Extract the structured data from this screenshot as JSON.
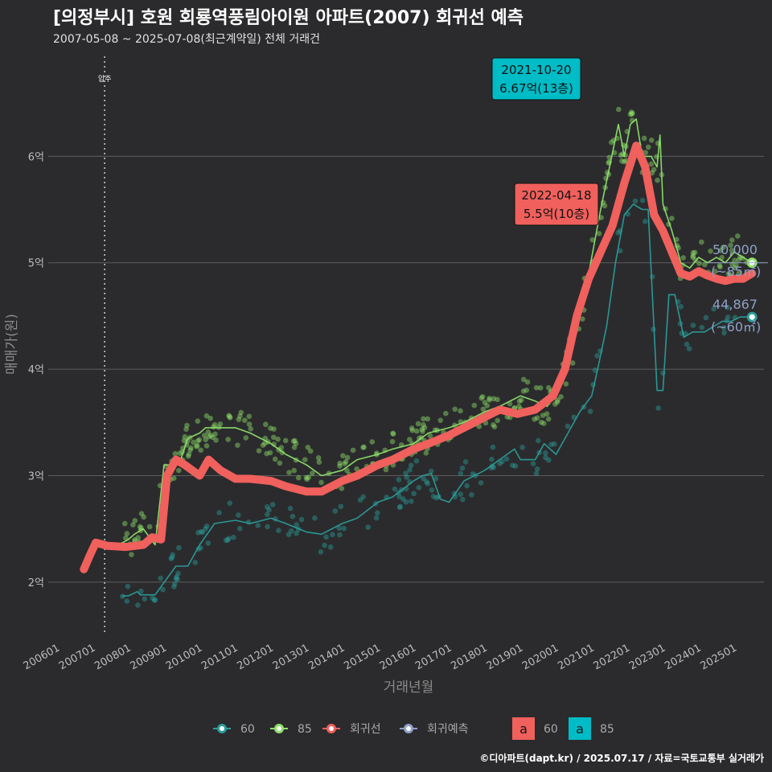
{
  "header": {
    "title": "[의정부시] 호원 회룡역풍림아이원 아파트(2007) 회귀선 예측",
    "subtitle": "2007-05-08 ~ 2025-07-08(최근계약일) 전체 거래건"
  },
  "credit": "©디아파트(dapt.kr) / 2025.07.17 / 자료=국토교통부 실거래가",
  "chart_data": {
    "type": "line",
    "xlabel": "거래년월",
    "ylabel": "매매가(원)",
    "ylim": [
      1.5,
      7.0
    ],
    "x_range": [
      "2005-10",
      "2025-11"
    ],
    "y_ticks": [
      {
        "value": 2,
        "label": "2억"
      },
      {
        "value": 3,
        "label": "3억"
      },
      {
        "value": 4,
        "label": "4억"
      },
      {
        "value": 5,
        "label": "5억"
      },
      {
        "value": 6,
        "label": "6억"
      }
    ],
    "x_ticks": [
      "200601",
      "200701",
      "200801",
      "200901",
      "201001",
      "201101",
      "201201",
      "201301",
      "201401",
      "201501",
      "201601",
      "201701",
      "201801",
      "201901",
      "202001",
      "202101",
      "202201",
      "202301",
      "202401",
      "202501"
    ],
    "vline": {
      "date": "2007-05",
      "label": "입주"
    },
    "grid": true,
    "series": [
      {
        "name": "60",
        "color": "#2a9d9a",
        "x": [
          "2007-11",
          "2008-01",
          "2008-04",
          "2008-05",
          "2008-10",
          "2009-05",
          "2009-09",
          "2010-01",
          "2010-06",
          "2011-01",
          "2011-06",
          "2012-01",
          "2012-06",
          "2013-01",
          "2013-06",
          "2014-01",
          "2014-06",
          "2015-01",
          "2015-06",
          "2016-01",
          "2016-04",
          "2016-07",
          "2016-10",
          "2017-01",
          "2017-06",
          "2018-01",
          "2018-06",
          "2018-11",
          "2019-01",
          "2019-06",
          "2019-09",
          "2020-01",
          "2020-06",
          "2020-09",
          "2021-01",
          "2021-03",
          "2021-06",
          "2021-09",
          "2021-12",
          "2022-03",
          "2022-06",
          "2022-08",
          "2022-11",
          "2023-01",
          "2023-03",
          "2023-05",
          "2023-08",
          "2023-11",
          "2024-01",
          "2024-03",
          "2024-06",
          "2024-09",
          "2024-12",
          "2025-03",
          "2025-07"
        ],
        "y": [
          1.87,
          1.87,
          1.91,
          1.88,
          1.88,
          2.15,
          2.15,
          2.35,
          2.55,
          2.58,
          2.55,
          2.6,
          2.55,
          2.47,
          2.45,
          2.55,
          2.6,
          2.75,
          2.8,
          2.95,
          3.0,
          3.02,
          2.78,
          2.75,
          2.95,
          3.05,
          3.15,
          3.25,
          3.15,
          3.15,
          3.3,
          3.2,
          3.45,
          3.6,
          3.75,
          4.0,
          4.4,
          5.0,
          5.45,
          5.55,
          5.5,
          5.5,
          3.8,
          3.8,
          4.7,
          4.7,
          4.3,
          4.35,
          4.35,
          4.35,
          4.4,
          4.45,
          4.45,
          4.49,
          4.49
        ]
      },
      {
        "name": "85",
        "color": "#8ee06a",
        "x": [
          "2007-11",
          "2008-01",
          "2008-03",
          "2008-06",
          "2008-10",
          "2009-01",
          "2009-03",
          "2009-06",
          "2009-09",
          "2010-01",
          "2010-03",
          "2010-06",
          "2011-01",
          "2011-06",
          "2012-01",
          "2012-06",
          "2013-01",
          "2013-06",
          "2014-01",
          "2014-06",
          "2015-01",
          "2015-06",
          "2016-01",
          "2016-06",
          "2017-01",
          "2017-06",
          "2018-01",
          "2018-06",
          "2019-01",
          "2019-06",
          "2019-10",
          "2020-01",
          "2020-04",
          "2020-08",
          "2020-12",
          "2021-02",
          "2021-04",
          "2021-07",
          "2021-10",
          "2021-12",
          "2022-02",
          "2022-04",
          "2022-06",
          "2022-09",
          "2022-11",
          "2022-12",
          "2023-01",
          "2023-04",
          "2023-07",
          "2023-10",
          "2024-01",
          "2024-04",
          "2024-07",
          "2024-10",
          "2025-01",
          "2025-04",
          "2025-07"
        ],
        "y": [
          2.37,
          2.4,
          2.45,
          2.5,
          2.35,
          3.1,
          3.1,
          3.1,
          3.35,
          3.4,
          3.45,
          3.45,
          3.45,
          3.4,
          3.3,
          3.2,
          3.1,
          3.0,
          3.05,
          3.15,
          3.2,
          3.25,
          3.3,
          3.4,
          3.45,
          3.5,
          3.6,
          3.65,
          3.75,
          3.7,
          3.65,
          3.8,
          4.0,
          4.35,
          4.9,
          5.2,
          5.5,
          5.9,
          6.3,
          6.0,
          6.3,
          6.35,
          6.0,
          6.0,
          5.9,
          6.2,
          5.55,
          5.3,
          5.0,
          4.95,
          5.05,
          5.0,
          5.05,
          5.0,
          5.1,
          5.05,
          5.0
        ]
      },
      {
        "name": "회귀선",
        "color": "#f0605c",
        "x": [
          "2006-10",
          "2006-12",
          "2007-02",
          "2007-06",
          "2007-12",
          "2008-06",
          "2008-09",
          "2008-12",
          "2009-02",
          "2009-05",
          "2009-08",
          "2010-01",
          "2010-04",
          "2010-08",
          "2011-01",
          "2011-06",
          "2012-01",
          "2012-06",
          "2013-01",
          "2013-06",
          "2014-01",
          "2014-06",
          "2015-01",
          "2015-06",
          "2016-01",
          "2016-06",
          "2017-01",
          "2017-06",
          "2018-01",
          "2018-06",
          "2018-12",
          "2019-06",
          "2019-12",
          "2020-04",
          "2020-08",
          "2020-12",
          "2021-04",
          "2021-08",
          "2021-12",
          "2022-04",
          "2022-07",
          "2022-10",
          "2023-01",
          "2023-04",
          "2023-07",
          "2023-10",
          "2024-01",
          "2024-04",
          "2024-07",
          "2024-10",
          "2025-01",
          "2025-04",
          "2025-07"
        ],
        "y": [
          2.12,
          2.25,
          2.37,
          2.34,
          2.33,
          2.35,
          2.42,
          2.4,
          3.0,
          3.15,
          3.1,
          3.0,
          3.15,
          3.05,
          2.97,
          2.97,
          2.95,
          2.9,
          2.85,
          2.85,
          2.95,
          3.0,
          3.1,
          3.15,
          3.25,
          3.3,
          3.38,
          3.45,
          3.55,
          3.62,
          3.58,
          3.62,
          3.75,
          4.0,
          4.5,
          4.85,
          5.1,
          5.35,
          5.75,
          6.1,
          5.9,
          5.45,
          5.3,
          5.1,
          4.9,
          4.87,
          4.92,
          4.88,
          4.85,
          4.83,
          4.85,
          4.85,
          4.9
        ]
      }
    ],
    "points_hint": "scatter of individual trades around series lines",
    "callouts": [
      {
        "text_date": "2021-10-20",
        "text_value": "6.67억(13층)",
        "bg": "#00bcc6"
      },
      {
        "text_date": "2022-04-18",
        "text_value": "5.5억(10층)",
        "bg": "#f0605c"
      }
    ],
    "end_labels": [
      {
        "value": "50,000",
        "area": "(~85㎡)"
      },
      {
        "value": "44,867",
        "area": "(~60㎡)"
      }
    ],
    "legend": [
      {
        "name": "60",
        "color": "#2a9d9a"
      },
      {
        "name": "85",
        "color": "#8ee06a"
      },
      {
        "name": "회귀선",
        "color": "#f0605c"
      },
      {
        "name": "회귀예측",
        "color": "#8fa0c8"
      }
    ],
    "legend_fill": [
      {
        "glyph": "a",
        "name": "60",
        "color": "#f0605c"
      },
      {
        "glyph": "a",
        "name": "85",
        "color": "#00bcc6"
      }
    ]
  }
}
